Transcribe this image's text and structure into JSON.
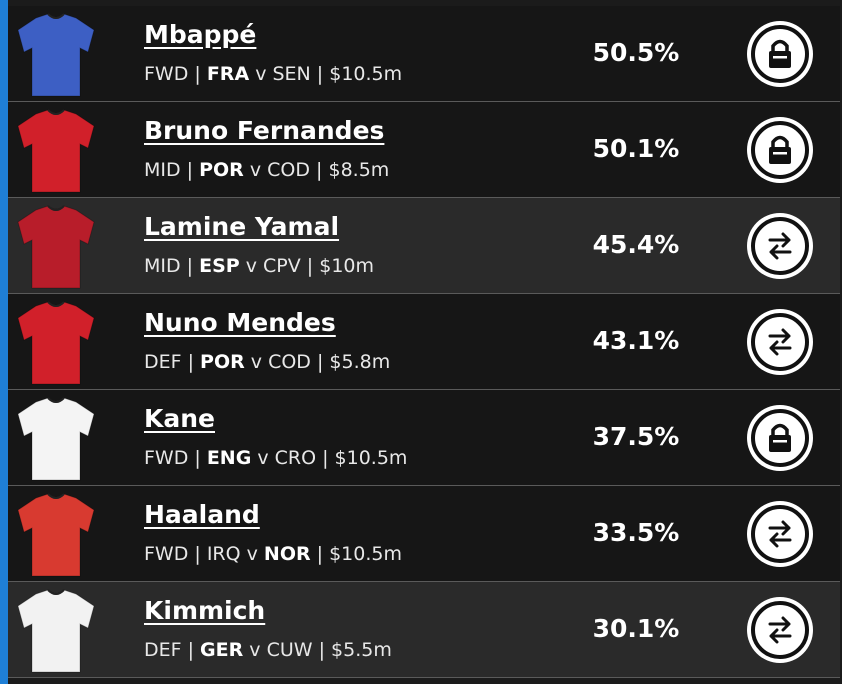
{
  "players": [
    {
      "name": "Mbappé",
      "info": [
        {
          "text": "FWD | "
        },
        {
          "text": "FRA",
          "bold": true
        },
        {
          "text": " v SEN | $10.5m"
        }
      ],
      "ownership": "50.5%",
      "locked": true,
      "shirt": "#3d5fc4"
    },
    {
      "name": "Bruno Fernandes",
      "info": [
        {
          "text": "MID | "
        },
        {
          "text": "POR",
          "bold": true
        },
        {
          "text": " v COD | $8.5m"
        }
      ],
      "ownership": "50.1%",
      "locked": true,
      "shirt": "#d1202a"
    },
    {
      "name": "Lamine Yamal",
      "info": [
        {
          "text": "MID | "
        },
        {
          "text": "ESP",
          "bold": true
        },
        {
          "text": " v CPV | $10m"
        }
      ],
      "ownership": "45.4%",
      "locked": false,
      "shirt": "#b81d2a"
    },
    {
      "name": "Nuno Mendes",
      "info": [
        {
          "text": "DEF | "
        },
        {
          "text": "POR",
          "bold": true
        },
        {
          "text": " v COD | $5.8m"
        }
      ],
      "ownership": "43.1%",
      "locked": false,
      "shirt": "#d1202a"
    },
    {
      "name": "Kane",
      "info": [
        {
          "text": "FWD | "
        },
        {
          "text": "ENG",
          "bold": true
        },
        {
          "text": " v CRO | $10.5m"
        }
      ],
      "ownership": "37.5%",
      "locked": true,
      "shirt": "#f4f4f4"
    },
    {
      "name": "Haaland",
      "info": [
        {
          "text": "FWD | IRQ v "
        },
        {
          "text": "NOR",
          "bold": true
        },
        {
          "text": " | $10.5m"
        }
      ],
      "ownership": "33.5%",
      "locked": false,
      "shirt": "#d83a30"
    },
    {
      "name": "Kimmich",
      "info": [
        {
          "text": "DEF | "
        },
        {
          "text": "GER",
          "bold": true
        },
        {
          "text": " v CUW | $5.5m"
        }
      ],
      "ownership": "30.1%",
      "locked": false,
      "shirt": "#f2f2f2"
    }
  ]
}
